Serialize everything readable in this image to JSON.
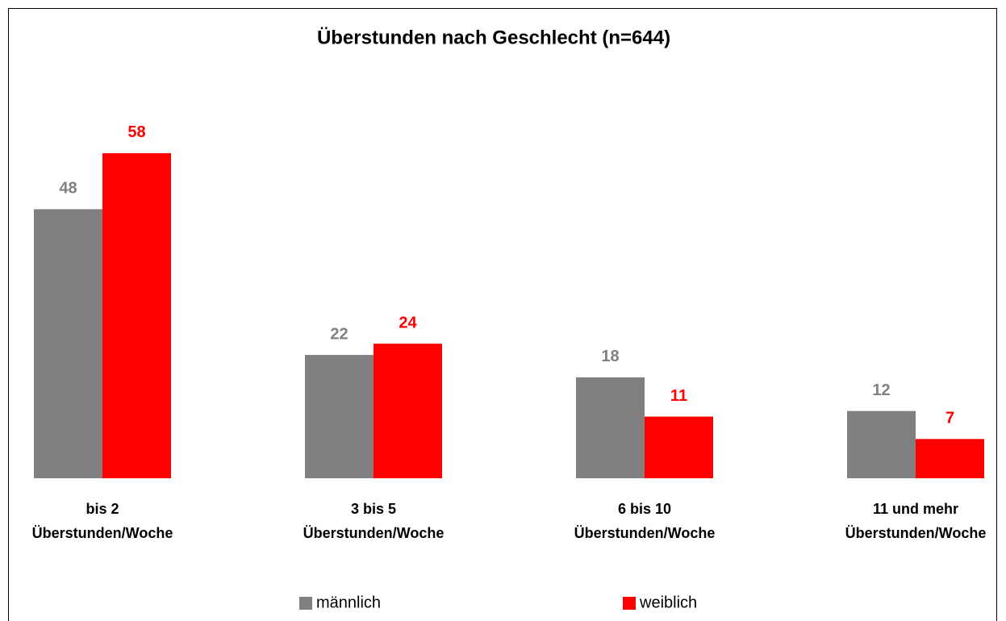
{
  "chart_data": {
    "type": "bar",
    "title": "Überstunden nach Geschlecht (n=644)",
    "categories": [
      [
        "bis 2",
        "Überstunden/Woche"
      ],
      [
        "3 bis 5",
        "Überstunden/Woche"
      ],
      [
        "6 bis 10",
        "Überstunden/Woche"
      ],
      [
        "11 und mehr",
        "Überstunden/Woche"
      ]
    ],
    "series": [
      {
        "name": "männlich",
        "color": "#808080",
        "values": [
          48,
          22,
          18,
          12
        ]
      },
      {
        "name": "weiblich",
        "color": "#ff0000",
        "values": [
          58,
          24,
          11,
          7
        ]
      }
    ],
    "ylim": [
      0,
      60
    ]
  }
}
